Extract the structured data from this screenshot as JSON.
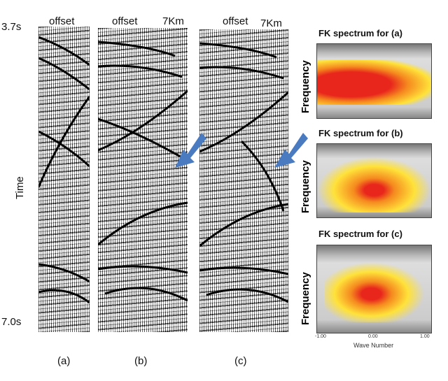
{
  "panels": [
    {
      "id": "a",
      "offset_label": "offset",
      "distance_label": "",
      "caption": "(a)"
    },
    {
      "id": "b",
      "offset_label": "offset",
      "distance_label": "7Km",
      "caption": "(b)"
    },
    {
      "id": "c",
      "offset_label": "offset",
      "distance_label": "7Km",
      "caption": "(c)"
    }
  ],
  "time_axis": {
    "label": "Time",
    "start": "3.7s",
    "end": "7.0s"
  },
  "fk_spectra": [
    {
      "title": "FK spectrum for  (a)",
      "ylabel": "Frequency"
    },
    {
      "title": "FK spectrum for  (b)",
      "ylabel": "Frequency"
    },
    {
      "title": "FK spectrum for  (c)",
      "ylabel": "Frequency"
    }
  ],
  "fk_xaxis": {
    "ticks": [
      "-1.00",
      "0.00",
      "1.00"
    ],
    "label": "Wave Number"
  },
  "colors": {
    "arrow": "#4a7bc0",
    "hot_red": "#e8261c",
    "hot_yellow": "#ffe23a"
  }
}
